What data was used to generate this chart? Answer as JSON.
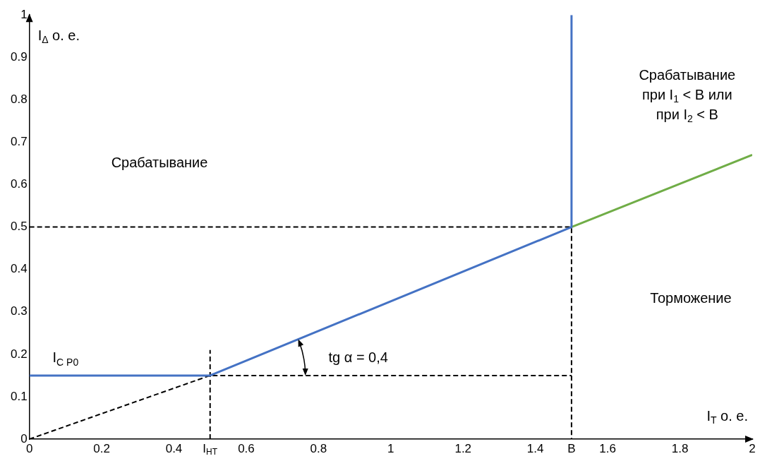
{
  "chart_data": {
    "type": "line",
    "xlabel": "I$_{T}$ o. e.",
    "ylabel": "I$_{Δ}$ o. e.",
    "xlim": [
      0,
      2
    ],
    "ylim": [
      0,
      1
    ],
    "xticks": [
      0,
      0.2,
      0.4,
      {
        "value": 0.5,
        "label": "I$_{HT}$"
      },
      0.6,
      0.8,
      1,
      1.2,
      1.4,
      {
        "value": 1.5,
        "label": "B"
      },
      1.6,
      1.8,
      2
    ],
    "yticks": [
      0,
      0.1,
      0.2,
      0.3,
      0.4,
      0.5,
      0.6,
      0.7,
      0.8,
      0.9,
      1
    ],
    "grid": false,
    "legend": false,
    "marker": "none",
    "series": [
      {
        "color": "#4472c4",
        "x": [
          0,
          0.5,
          1.5,
          1.5
        ],
        "values": [
          0.15,
          0.15,
          0.5,
          1
        ],
        "line_style": "solid"
      },
      {
        "color": "#70ad47",
        "x": [
          1.5,
          2
        ],
        "values": [
          0.5,
          0.67
        ],
        "line_style": "solid"
      },
      {
        "color": "#000000",
        "x": [
          0,
          0.5,
          1.5
        ],
        "values": [
          0,
          0.15,
          0.15
        ],
        "line_style": "dashed"
      },
      {
        "color": "#000000",
        "x": [
          0,
          1.5,
          1.5
        ],
        "values": [
          0.5,
          0.5,
          0
        ],
        "line_style": "dashed"
      },
      {
        "color": "#000000",
        "x": [
          0.5,
          0.5
        ],
        "values": [
          0,
          0.21
        ],
        "line_style": "dashed"
      }
    ],
    "annotations": [
      "I$_{C P0}$",
      "Срабатывание",
      "Срабатывание\nпри I$_{1}$ < B или\nпри I$_{2}$ < B",
      "Торможение",
      "tg α = 0,4"
    ]
  }
}
